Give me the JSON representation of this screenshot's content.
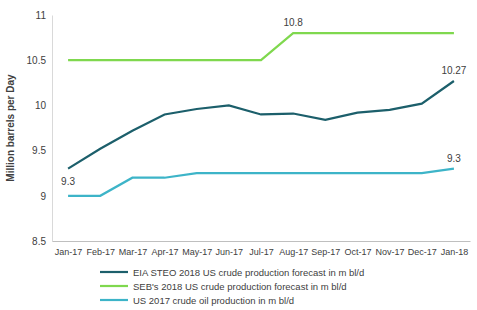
{
  "chart_data": {
    "type": "line",
    "y_label": "Million barrels per Day",
    "categories": [
      "Jan-17",
      "Feb-17",
      "Mar-17",
      "Apr-17",
      "May-17",
      "Jun-17",
      "Jul-17",
      "Aug-17",
      "Sep-17",
      "Oct-17",
      "Nov-17",
      "Dec-17",
      "Jan-18"
    ],
    "ylim": [
      8.5,
      11
    ],
    "yticks": [
      8.5,
      9,
      9.5,
      10,
      10.5,
      11
    ],
    "grid": false,
    "legend": "bottom",
    "data_labels": true,
    "series": [
      {
        "name": "EIA STEO 2018 US crude production forecast in m bl/d",
        "color": "#1c5f6b",
        "values": [
          9.3,
          9.52,
          9.72,
          9.9,
          9.96,
          10.0,
          9.9,
          9.91,
          9.84,
          9.92,
          9.95,
          10.02,
          10.27
        ],
        "value_labels": [
          "9.3",
          null,
          null,
          null,
          null,
          null,
          null,
          null,
          null,
          null,
          null,
          null,
          "10.27"
        ]
      },
      {
        "name": "SEB's 2018 US crude production forecast in m bl/d",
        "color": "#7fd84e",
        "values": [
          10.5,
          10.5,
          10.5,
          10.5,
          10.5,
          10.5,
          10.5,
          10.8,
          10.8,
          10.8,
          10.8,
          10.8,
          10.8
        ],
        "value_labels": [
          null,
          null,
          null,
          null,
          null,
          null,
          null,
          "10.8",
          null,
          null,
          null,
          null,
          null
        ]
      },
      {
        "name": "US 2017 crude oil production in m bl/d",
        "color": "#3db4c8",
        "values": [
          9.0,
          9.0,
          9.2,
          9.2,
          9.25,
          9.25,
          9.25,
          9.25,
          9.25,
          9.25,
          9.25,
          9.25,
          9.3
        ],
        "value_labels": [
          null,
          null,
          null,
          null,
          null,
          null,
          null,
          null,
          null,
          null,
          null,
          null,
          "9.3"
        ]
      }
    ]
  }
}
